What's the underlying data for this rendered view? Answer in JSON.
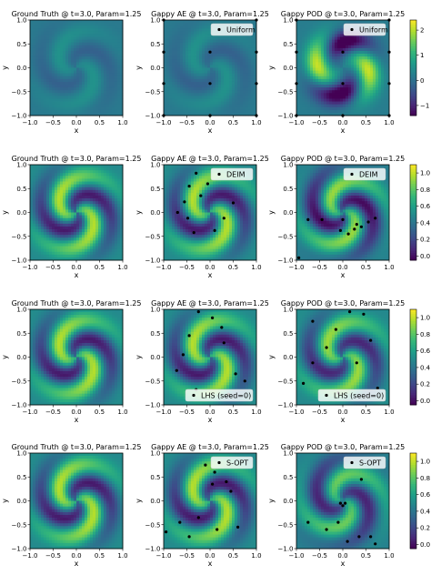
{
  "figure": {
    "xlabel": "x",
    "ylabel": "y",
    "tick_labels_x": [
      "−1.0",
      "−0.5",
      "0.0",
      "0.5",
      "1.0"
    ],
    "tick_labels_y": [
      "1.0",
      "0.5",
      "0.0",
      "−0.5",
      "−1.0"
    ],
    "colormap": "viridis",
    "colormap_stops": [
      "#440154",
      "#3b528b",
      "#21918c",
      "#5ec962",
      "#fde725"
    ]
  },
  "chart_data": [
    {
      "type": "heatmap",
      "xlim": [
        -1,
        1
      ],
      "ylim": [
        -1,
        1
      ],
      "colorbar": {
        "min": -1.4,
        "max": 2.4,
        "ticks": [
          -1,
          0,
          1,
          2
        ],
        "tick_labels": [
          "−1",
          "0",
          "1",
          "2"
        ]
      },
      "panels": [
        {
          "title": "Ground Truth @ t=3.0, Param=1.25",
          "field": {
            "kind": "spiral",
            "arms": 2,
            "amp": 0.45,
            "base": 0.15
          }
        },
        {
          "title": "Gappy AE @ t=3.0, Param=1.25",
          "field": {
            "kind": "spiral",
            "arms": 2,
            "amp": 0.45,
            "base": 0.15
          },
          "legend": {
            "label": "Uniform",
            "position": "upper right"
          },
          "sensors": [
            [
              -1,
              1
            ],
            [
              -1,
              0.33
            ],
            [
              -1,
              -0.33
            ],
            [
              -1,
              -1
            ],
            [
              0,
              0.33
            ],
            [
              0,
              -0.33
            ],
            [
              0,
              -1
            ],
            [
              1,
              1
            ],
            [
              1,
              0.33
            ],
            [
              1,
              -0.33
            ],
            [
              1,
              -1
            ]
          ]
        },
        {
          "title": "Gappy POD @ t=3.0, Param=1.25",
          "field": {
            "kind": "pod",
            "amp": 1.9,
            "base": 0.2
          },
          "legend": {
            "label": "Uniform",
            "position": "upper right"
          },
          "sensors": [
            [
              -1,
              1
            ],
            [
              -1,
              0.33
            ],
            [
              -1,
              -0.33
            ],
            [
              -1,
              -1
            ],
            [
              0,
              0.33
            ],
            [
              0,
              -0.33
            ],
            [
              0,
              -1
            ],
            [
              1,
              1
            ],
            [
              1,
              0.33
            ],
            [
              1,
              -0.33
            ],
            [
              1,
              -1
            ]
          ]
        }
      ]
    },
    {
      "type": "heatmap",
      "xlim": [
        -1,
        1
      ],
      "ylim": [
        -1,
        1
      ],
      "colorbar": {
        "min": -0.05,
        "max": 1.1,
        "ticks": [
          0,
          0.2,
          0.4,
          0.6,
          0.8,
          1.0
        ],
        "tick_labels": [
          "0.0",
          "0.2",
          "0.4",
          "0.6",
          "0.8",
          "1.0"
        ]
      },
      "panels": [
        {
          "title": "Ground Truth @ t=3.0, Param=1.25",
          "field": {
            "kind": "spiral",
            "arms": 2,
            "amp": 0.55,
            "base": 0.5
          }
        },
        {
          "title": "Gappy AE @ t=3.0, Param=1.25",
          "field": {
            "kind": "spiral",
            "arms": 2,
            "amp": 0.55,
            "base": 0.5
          },
          "legend": {
            "label": "DEIM",
            "position": "upper right"
          },
          "sensors": [
            [
              -0.3,
              0.82
            ],
            [
              -0.05,
              0.6
            ],
            [
              -0.45,
              0.55
            ],
            [
              -0.2,
              0.35
            ],
            [
              -0.55,
              0.22
            ],
            [
              -0.7,
              0.0
            ],
            [
              -0.48,
              -0.12
            ],
            [
              -0.35,
              -0.42
            ],
            [
              0.1,
              -0.38
            ],
            [
              0.3,
              -0.12
            ],
            [
              0.5,
              0.2
            ]
          ]
        },
        {
          "title": "Gappy POD @ t=3.0, Param=1.25",
          "field": {
            "kind": "spiral",
            "arms": 2,
            "amp": 0.55,
            "base": 0.45,
            "shift": 0.9
          },
          "legend": {
            "label": "DEIM",
            "position": "upper right"
          },
          "sensors": [
            [
              -0.75,
              -0.15
            ],
            [
              -0.45,
              -0.15
            ],
            [
              -0.05,
              -0.38
            ],
            [
              0.12,
              -0.45
            ],
            [
              0.25,
              -0.35
            ],
            [
              0.4,
              -0.3
            ],
            [
              0.55,
              -0.2
            ],
            [
              0.7,
              -0.12
            ],
            [
              0.3,
              -0.25
            ],
            [
              0.0,
              -0.15
            ],
            [
              -0.95,
              -0.95
            ]
          ]
        }
      ]
    },
    {
      "type": "heatmap",
      "xlim": [
        -1,
        1
      ],
      "ylim": [
        -1,
        1
      ],
      "colorbar": {
        "min": -0.05,
        "max": 1.1,
        "ticks": [
          0,
          0.2,
          0.4,
          0.6,
          0.8,
          1.0
        ],
        "tick_labels": [
          "0.0",
          "0.2",
          "0.4",
          "0.6",
          "0.8",
          "1.0"
        ]
      },
      "panels": [
        {
          "title": "Ground Truth @ t=3.0, Param=1.25",
          "field": {
            "kind": "spiral",
            "arms": 2,
            "amp": 0.55,
            "base": 0.5
          }
        },
        {
          "title": "Gappy AE @ t=3.0, Param=1.25",
          "field": {
            "kind": "spiral",
            "arms": 2,
            "amp": 0.55,
            "base": 0.5
          },
          "legend": {
            "label": "LHS (seed=0)",
            "position": "lower right"
          },
          "sensors": [
            [
              -0.25,
              0.95
            ],
            [
              0.05,
              0.82
            ],
            [
              0.25,
              0.62
            ],
            [
              -0.45,
              0.45
            ],
            [
              0.3,
              0.3
            ],
            [
              -0.58,
              0.05
            ],
            [
              -0.72,
              -0.28
            ],
            [
              0.55,
              -0.35
            ],
            [
              -0.3,
              -0.68
            ],
            [
              0.75,
              -0.5
            ],
            [
              0.4,
              -0.78
            ]
          ]
        },
        {
          "title": "Gappy POD @ t=3.0, Param=1.25",
          "field": {
            "kind": "spiral",
            "arms": 2,
            "amp": 0.5,
            "base": 0.5,
            "shift": 0.3
          },
          "legend": {
            "label": "LHS (seed=0)",
            "position": "lower right"
          },
          "sensors": [
            [
              0.15,
              0.95
            ],
            [
              0.45,
              0.9
            ],
            [
              -0.65,
              0.75
            ],
            [
              -0.15,
              0.58
            ],
            [
              0.6,
              0.35
            ],
            [
              -0.35,
              0.2
            ],
            [
              -0.65,
              -0.12
            ],
            [
              0.3,
              -0.12
            ],
            [
              -0.85,
              -0.55
            ],
            [
              0.75,
              -0.65
            ],
            [
              -0.1,
              -0.75
            ]
          ]
        }
      ]
    },
    {
      "type": "heatmap",
      "xlim": [
        -1,
        1
      ],
      "ylim": [
        -1,
        1
      ],
      "colorbar": {
        "min": -0.05,
        "max": 1.1,
        "ticks": [
          0,
          0.2,
          0.4,
          0.6,
          0.8,
          1.0
        ],
        "tick_labels": [
          "0.0",
          "0.2",
          "0.4",
          "0.6",
          "0.8",
          "1.0"
        ]
      },
      "panels": [
        {
          "title": "Ground Truth @ t=3.0, Param=1.25",
          "field": {
            "kind": "spiral",
            "arms": 2,
            "amp": 0.55,
            "base": 0.5
          }
        },
        {
          "title": "Gappy AE @ t=3.0, Param=1.25",
          "field": {
            "kind": "spiral",
            "arms": 2,
            "amp": 0.55,
            "base": 0.5
          },
          "legend": {
            "label": "S-OPT",
            "position": "upper right"
          },
          "sensors": [
            [
              -0.1,
              0.75
            ],
            [
              0.1,
              0.6
            ],
            [
              0.35,
              0.4
            ],
            [
              0.45,
              0.2
            ],
            [
              -0.25,
              -0.35
            ],
            [
              -0.65,
              -0.45
            ],
            [
              -0.45,
              -0.75
            ],
            [
              0.15,
              -0.6
            ],
            [
              0.6,
              -0.55
            ],
            [
              -0.95,
              -0.65
            ],
            [
              0.05,
              0.35
            ]
          ]
        },
        {
          "title": "Gappy POD @ t=3.0, Param=1.25",
          "field": {
            "kind": "spiral",
            "arms": 2,
            "amp": 0.45,
            "base": 0.45,
            "shift": 1.6
          },
          "legend": {
            "label": "S-OPT",
            "position": "upper right"
          },
          "sensors": [
            [
              -0.05,
              -0.05
            ],
            [
              0.0,
              -0.1
            ],
            [
              0.05,
              -0.05
            ],
            [
              -0.1,
              -0.45
            ],
            [
              -0.35,
              -0.6
            ],
            [
              -0.75,
              -0.45
            ],
            [
              0.1,
              -0.85
            ],
            [
              0.35,
              -0.75
            ],
            [
              0.6,
              -0.75
            ],
            [
              0.7,
              -0.9
            ],
            [
              0.4,
              0.45
            ]
          ]
        }
      ]
    }
  ]
}
